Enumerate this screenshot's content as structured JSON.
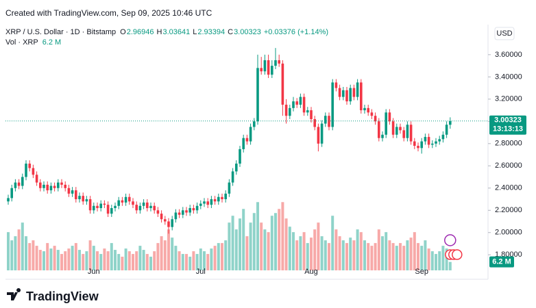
{
  "created": "Created with TradingView.com, Sep 09, 2025 10:46 UTC",
  "footer_brand": "TradingView",
  "chart_data": {
    "type": "candlestick",
    "symbol": "XRP / U.S. Dollar · 1D · Bitstamp",
    "ohlc_labels": [
      "O",
      "H",
      "L",
      "C"
    ],
    "change_label": "+0.03376 (+1.14%)",
    "volume_title": "Vol · XRP",
    "volume_last_label": "6.2 M",
    "currency": "USD",
    "countdown": "13:13:13",
    "up_color": "#089981",
    "down_color": "#f23645",
    "volume_up_color": "#8fd3c9",
    "volume_down_color": "#f7a9a8",
    "grid": false,
    "categories": [
      null,
      null,
      null,
      null,
      null,
      null,
      null,
      null,
      null,
      null,
      null,
      null,
      null,
      null,
      null,
      null,
      null,
      null,
      null,
      null,
      null,
      null,
      null,
      null,
      "Jun",
      null,
      null,
      null,
      null,
      null,
      null,
      null,
      null,
      null,
      null,
      null,
      null,
      null,
      null,
      null,
      null,
      null,
      null,
      null,
      null,
      null,
      null,
      null,
      null,
      null,
      null,
      null,
      null,
      null,
      "Jul",
      null,
      null,
      null,
      null,
      null,
      null,
      null,
      null,
      null,
      null,
      null,
      null,
      null,
      null,
      null,
      null,
      null,
      null,
      null,
      null,
      null,
      null,
      null,
      null,
      null,
      null,
      null,
      null,
      null,
      null,
      "Aug",
      null,
      null,
      null,
      null,
      null,
      null,
      null,
      null,
      null,
      null,
      null,
      null,
      null,
      null,
      null,
      null,
      null,
      null,
      null,
      null,
      null,
      null,
      null,
      null,
      null,
      null,
      null,
      null,
      null,
      null,
      "Sep",
      null,
      null,
      null,
      null,
      null,
      null,
      null,
      null
    ],
    "open": [
      2.28,
      2.31,
      2.4,
      2.45,
      2.42,
      2.5,
      2.62,
      2.58,
      2.52,
      2.45,
      2.4,
      2.43,
      2.38,
      2.42,
      2.4,
      2.45,
      2.43,
      2.4,
      2.35,
      2.38,
      2.3,
      2.33,
      2.28,
      2.3,
      2.2,
      2.24,
      2.22,
      2.26,
      2.25,
      2.17,
      2.22,
      2.24,
      2.29,
      2.27,
      2.32,
      2.28,
      2.25,
      2.2,
      2.24,
      2.27,
      2.22,
      2.24,
      2.2,
      2.17,
      2.12,
      2.1,
      2.05,
      2.12,
      2.18,
      2.16,
      2.2,
      2.18,
      2.22,
      2.2,
      2.24,
      2.26,
      2.28,
      2.25,
      2.3,
      2.28,
      2.32,
      2.3,
      2.35,
      2.45,
      2.55,
      2.62,
      2.75,
      2.85,
      2.82,
      2.95,
      3.0,
      3.48,
      3.45,
      3.55,
      3.42,
      3.5,
      3.55,
      3.52,
      3.15,
      3.05,
      3.12,
      3.18,
      3.15,
      3.22,
      3.08,
      3.1,
      3.02,
      2.95,
      2.8,
      2.98,
      3.05,
      2.95,
      3.35,
      3.3,
      3.22,
      3.28,
      3.18,
      3.3,
      3.22,
      3.35,
      3.1,
      3.12,
      3.08,
      3.05,
      3.0,
      2.85,
      2.88,
      3.08,
      3.0,
      2.88,
      2.95,
      2.92,
      2.85,
      2.97,
      2.82,
      2.78,
      2.76,
      2.82,
      2.86,
      2.79,
      2.8,
      2.82,
      2.84,
      2.88,
      2.96946
    ],
    "high": [
      2.34,
      2.43,
      2.48,
      2.48,
      2.53,
      2.65,
      2.65,
      2.61,
      2.55,
      2.48,
      2.46,
      2.46,
      2.45,
      2.45,
      2.48,
      2.48,
      2.46,
      2.43,
      2.41,
      2.41,
      2.36,
      2.36,
      2.33,
      2.33,
      2.27,
      2.27,
      2.29,
      2.29,
      2.28,
      2.25,
      2.27,
      2.32,
      2.32,
      2.35,
      2.35,
      2.31,
      2.28,
      2.27,
      2.3,
      2.3,
      2.27,
      2.27,
      2.23,
      2.2,
      2.15,
      2.13,
      2.15,
      2.21,
      2.21,
      2.23,
      2.23,
      2.25,
      2.25,
      2.27,
      2.29,
      2.31,
      2.31,
      2.33,
      2.33,
      2.35,
      2.35,
      2.38,
      2.48,
      2.58,
      2.65,
      2.78,
      2.88,
      2.88,
      2.98,
      3.03,
      3.6,
      3.58,
      3.6,
      3.6,
      3.55,
      3.66,
      3.6,
      3.55,
      3.2,
      3.15,
      3.22,
      3.21,
      3.25,
      3.25,
      3.13,
      3.13,
      3.05,
      2.98,
      3.01,
      3.08,
      3.08,
      3.38,
      3.38,
      3.33,
      3.31,
      3.31,
      3.33,
      3.33,
      3.38,
      3.38,
      3.15,
      3.15,
      3.11,
      3.08,
      3.03,
      2.91,
      3.11,
      3.11,
      3.03,
      2.98,
      2.98,
      2.95,
      3.0,
      3.0,
      2.85,
      2.81,
      2.85,
      2.89,
      2.89,
      2.83,
      2.85,
      2.87,
      2.91,
      3.0,
      3.03641
    ],
    "low": [
      2.25,
      2.28,
      2.37,
      2.39,
      2.39,
      2.47,
      2.55,
      2.49,
      2.42,
      2.37,
      2.37,
      2.35,
      2.35,
      2.37,
      2.37,
      2.4,
      2.37,
      2.32,
      2.32,
      2.27,
      2.27,
      2.25,
      2.25,
      2.17,
      2.17,
      2.19,
      2.19,
      2.22,
      2.14,
      2.14,
      2.19,
      2.21,
      2.24,
      2.24,
      2.25,
      2.22,
      2.17,
      2.17,
      2.21,
      2.19,
      2.19,
      2.17,
      2.14,
      2.09,
      2.07,
      1.99,
      2.02,
      2.09,
      2.13,
      2.13,
      2.15,
      2.15,
      2.17,
      2.17,
      2.21,
      2.23,
      2.22,
      2.22,
      2.25,
      2.25,
      2.27,
      2.27,
      2.32,
      2.42,
      2.52,
      2.59,
      2.72,
      2.79,
      2.79,
      2.92,
      2.97,
      3.42,
      3.42,
      3.39,
      3.39,
      3.47,
      3.49,
      3.05,
      2.98,
      3.02,
      3.09,
      3.12,
      3.12,
      3.05,
      3.05,
      2.99,
      2.92,
      2.73,
      2.77,
      2.95,
      2.92,
      2.92,
      3.27,
      3.19,
      3.19,
      3.15,
      3.15,
      3.19,
      3.19,
      3.07,
      3.07,
      3.05,
      3.02,
      2.97,
      2.82,
      2.82,
      2.85,
      2.97,
      2.85,
      2.85,
      2.89,
      2.82,
      2.82,
      2.79,
      2.75,
      2.73,
      2.71,
      2.79,
      2.76,
      2.76,
      2.77,
      2.79,
      2.81,
      2.85,
      2.93394
    ],
    "close": [
      2.31,
      2.4,
      2.45,
      2.42,
      2.5,
      2.62,
      2.58,
      2.52,
      2.45,
      2.4,
      2.43,
      2.38,
      2.42,
      2.4,
      2.45,
      2.43,
      2.4,
      2.35,
      2.38,
      2.3,
      2.33,
      2.28,
      2.3,
      2.2,
      2.24,
      2.22,
      2.26,
      2.25,
      2.17,
      2.22,
      2.24,
      2.29,
      2.27,
      2.32,
      2.28,
      2.25,
      2.2,
      2.24,
      2.27,
      2.22,
      2.24,
      2.2,
      2.17,
      2.12,
      2.1,
      2.05,
      2.12,
      2.18,
      2.16,
      2.2,
      2.18,
      2.22,
      2.2,
      2.24,
      2.26,
      2.28,
      2.25,
      2.3,
      2.28,
      2.32,
      2.3,
      2.35,
      2.45,
      2.55,
      2.62,
      2.75,
      2.85,
      2.82,
      2.95,
      3.0,
      3.48,
      3.45,
      3.55,
      3.42,
      3.5,
      3.55,
      3.52,
      3.15,
      3.05,
      3.12,
      3.18,
      3.15,
      3.22,
      3.08,
      3.1,
      3.02,
      2.95,
      2.8,
      2.98,
      3.05,
      2.95,
      3.35,
      3.3,
      3.22,
      3.28,
      3.18,
      3.3,
      3.22,
      3.35,
      3.1,
      3.12,
      3.08,
      3.05,
      3.0,
      2.85,
      2.88,
      3.08,
      3.0,
      2.88,
      2.95,
      2.92,
      2.85,
      2.97,
      2.82,
      2.78,
      2.76,
      2.82,
      2.86,
      2.79,
      2.8,
      2.82,
      2.84,
      2.88,
      2.97,
      3.00323
    ],
    "volume": [
      28,
      22,
      25,
      30,
      35,
      25,
      20,
      22,
      18,
      15,
      14,
      20,
      16,
      18,
      15,
      12,
      14,
      16,
      18,
      20,
      15,
      12,
      14,
      22,
      18,
      14,
      12,
      16,
      14,
      20,
      15,
      12,
      10,
      16,
      14,
      12,
      14,
      18,
      15,
      12,
      10,
      14,
      20,
      25,
      22,
      30,
      24,
      18,
      14,
      12,
      12,
      10,
      14,
      12,
      16,
      14,
      12,
      16,
      18,
      20,
      20,
      22,
      35,
      40,
      30,
      38,
      45,
      25,
      35,
      42,
      50,
      35,
      30,
      28,
      40,
      42,
      45,
      50,
      38,
      32,
      28,
      22,
      25,
      28,
      20,
      24,
      30,
      35,
      25,
      22,
      20,
      40,
      30,
      25,
      22,
      20,
      24,
      22,
      30,
      28,
      22,
      20,
      18,
      20,
      30,
      25,
      28,
      22,
      20,
      18,
      20,
      18,
      22,
      24,
      28,
      20,
      18,
      22,
      16,
      14,
      12,
      14,
      18,
      16,
      6.2
    ],
    "ylim": [
      1.66,
      3.87
    ],
    "vlim": [
      0,
      180
    ],
    "yticks": [
      {
        "value": 1.8,
        "label": "1.80000"
      },
      {
        "value": 2.0,
        "label": "2.00000"
      },
      {
        "value": 2.2,
        "label": "2.20000"
      },
      {
        "value": 2.4,
        "label": "2.40000"
      },
      {
        "value": 2.6,
        "label": "2.60000"
      },
      {
        "value": 2.8,
        "label": "2.80000"
      },
      {
        "value": 3.0,
        "label": "3.00000"
      },
      {
        "value": 3.2,
        "label": "3.20000"
      },
      {
        "value": 3.4,
        "label": "3.40000"
      },
      {
        "value": 3.6,
        "label": "3.60000"
      }
    ]
  }
}
